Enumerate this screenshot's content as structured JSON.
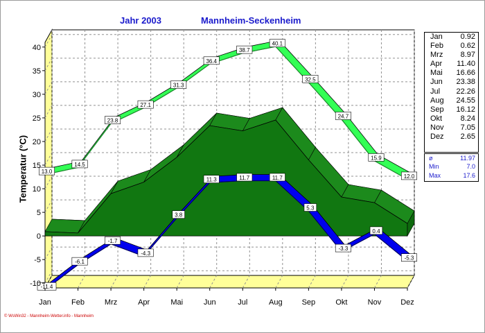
{
  "header": {
    "year_title": "Jahr  2003",
    "station_title": "Mannheim-Seckenheim"
  },
  "axis": {
    "ylabel": "Temperatur  (°C)"
  },
  "credit": "© WsWin32 - Mannheim-Wetter.info - Mannheim",
  "monthly_means": [
    {
      "month": "Jan",
      "value": "0.92"
    },
    {
      "month": "Feb",
      "value": "0.62"
    },
    {
      "month": "Mrz",
      "value": "8.97"
    },
    {
      "month": "Apr",
      "value": "11.40"
    },
    {
      "month": "Mai",
      "value": "16.66"
    },
    {
      "month": "Jun",
      "value": "23.38"
    },
    {
      "month": "Jul",
      "value": "22.26"
    },
    {
      "month": "Aug",
      "value": "24.55"
    },
    {
      "month": "Sep",
      "value": "16.12"
    },
    {
      "month": "Okt",
      "value": "8.24"
    },
    {
      "month": "Nov",
      "value": "7.05"
    },
    {
      "month": "Dez",
      "value": "2.65"
    }
  ],
  "stats": [
    {
      "label": "ø",
      "value": "11.97"
    },
    {
      "label": "Min",
      "value": "7.0"
    },
    {
      "label": "Max",
      "value": "17.6"
    }
  ],
  "colors": {
    "max_line": "#33ff55",
    "mean_area": "#117711",
    "min_line": "#0000ee",
    "axis_wall": "#ffff99",
    "grid": "#909090",
    "title": "#1a1acc"
  },
  "chart_data": {
    "type": "line",
    "title": "Jahr 2003 Mannheim-Seckenheim",
    "xlabel": "",
    "ylabel": "Temperatur (°C)",
    "ylim": [
      -11,
      41
    ],
    "yticks": [
      -10,
      -5,
      0,
      5,
      10,
      15,
      20,
      25,
      30,
      35,
      40
    ],
    "categories": [
      "Jan",
      "Feb",
      "Mrz",
      "Apr",
      "Mai",
      "Jun",
      "Jul",
      "Aug",
      "Sep",
      "Okt",
      "Nov",
      "Dez"
    ],
    "series": [
      {
        "name": "Maximum",
        "style": "band",
        "values": [
          13.0,
          14.5,
          23.8,
          27.1,
          31.3,
          36.4,
          38.7,
          40.1,
          32.5,
          24.7,
          15.9,
          12.0
        ],
        "labels": [
          "13.0",
          "14.5",
          "23.8",
          "27.1",
          "31.3",
          "36.4",
          "38.7",
          "40.1",
          "32.5",
          "24.7",
          "15.9",
          "12.0"
        ]
      },
      {
        "name": "Mittel",
        "style": "area",
        "values": [
          0.92,
          0.62,
          8.97,
          11.4,
          16.66,
          23.38,
          22.26,
          24.55,
          16.12,
          8.24,
          7.05,
          2.65
        ]
      },
      {
        "name": "Minimum",
        "style": "band",
        "values": [
          -11.4,
          -6.1,
          -1.7,
          -4.3,
          3.8,
          11.3,
          11.7,
          11.7,
          5.3,
          -3.3,
          0.4,
          -5.3
        ],
        "labels": [
          "-11.4",
          "-6.1",
          "-1.7",
          "-4.3",
          "3.8",
          "11.3",
          "11.7",
          "11.7",
          "5.3",
          "-3.3",
          "0.4",
          "-5.3"
        ]
      }
    ],
    "grid": true,
    "legend": "right"
  }
}
